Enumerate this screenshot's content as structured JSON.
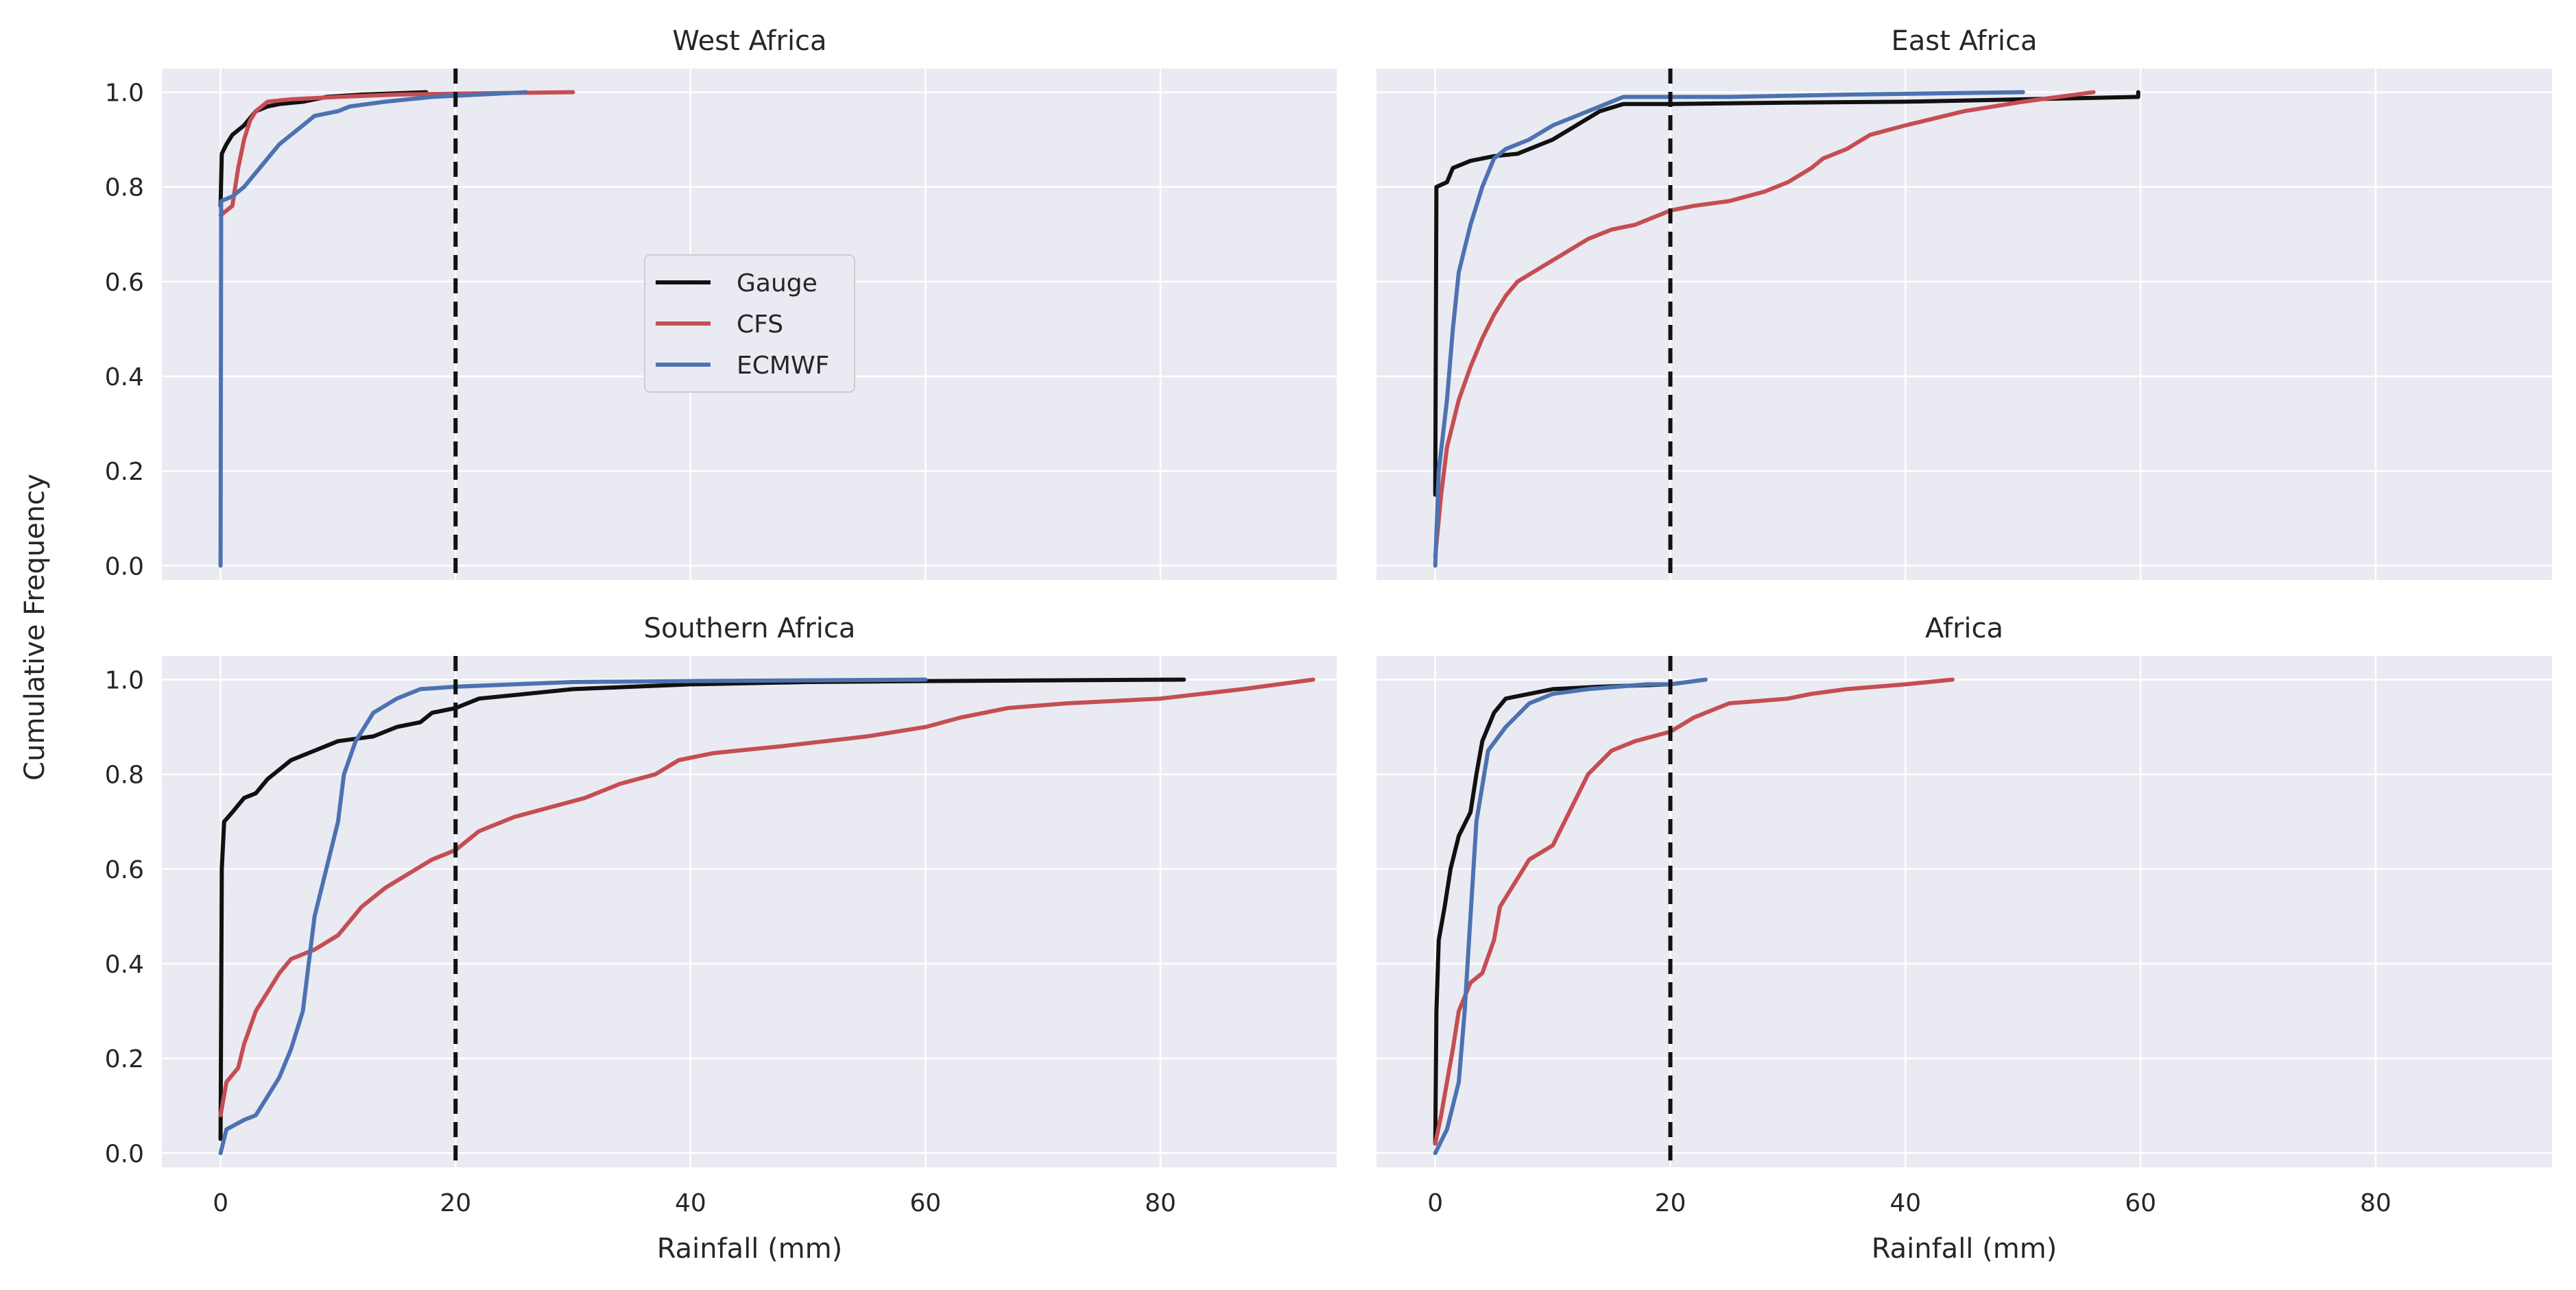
{
  "chart_data": {
    "type": "line",
    "ylabel": "Cumulative Frequency",
    "threshold_x": 20,
    "xlim": [
      -5,
      95
    ],
    "ylim": [
      -0.03,
      1.05
    ],
    "xticks": [
      0,
      20,
      40,
      60,
      80
    ],
    "yticks": [
      0.0,
      0.2,
      0.4,
      0.6,
      0.8,
      1.0
    ],
    "legend": {
      "location": "center",
      "entries": [
        {
          "name": "Gauge",
          "color": "#111111"
        },
        {
          "name": "CFS",
          "color": "#c44e52"
        },
        {
          "name": "ECMWF",
          "color": "#4c72b0"
        }
      ]
    },
    "colors": {
      "Gauge": "#111111",
      "CFS": "#c44e52",
      "ECMWF": "#4c72b0",
      "threshold": "#111111",
      "panel_bg": "#eaeaf2",
      "grid": "#ffffff"
    },
    "panels": [
      {
        "title": "West Africa",
        "xlabel": "",
        "series": [
          {
            "name": "Gauge",
            "points": [
              [
                0,
                0.76
              ],
              [
                0.1,
                0.87
              ],
              [
                0.5,
                0.89
              ],
              [
                1,
                0.91
              ],
              [
                2,
                0.93
              ],
              [
                3,
                0.96
              ],
              [
                4,
                0.97
              ],
              [
                5,
                0.975
              ],
              [
                7,
                0.98
              ],
              [
                9,
                0.99
              ],
              [
                12,
                0.995
              ],
              [
                17.5,
                1.0
              ]
            ]
          },
          {
            "name": "CFS",
            "points": [
              [
                0,
                0.74
              ],
              [
                1,
                0.76
              ],
              [
                1.5,
                0.84
              ],
              [
                2,
                0.9
              ],
              [
                2.5,
                0.94
              ],
              [
                3,
                0.96
              ],
              [
                4,
                0.98
              ],
              [
                6,
                0.985
              ],
              [
                10,
                0.99
              ],
              [
                15,
                0.995
              ],
              [
                20,
                0.997
              ],
              [
                30,
                1.0
              ]
            ]
          },
          {
            "name": "ECMWF",
            "points": [
              [
                0,
                0.0
              ],
              [
                0.05,
                0.77
              ],
              [
                1,
                0.78
              ],
              [
                2,
                0.8
              ],
              [
                3,
                0.83
              ],
              [
                4,
                0.86
              ],
              [
                5,
                0.89
              ],
              [
                6,
                0.91
              ],
              [
                7,
                0.93
              ],
              [
                8,
                0.95
              ],
              [
                10,
                0.96
              ],
              [
                11,
                0.97
              ],
              [
                14,
                0.98
              ],
              [
                18,
                0.99
              ],
              [
                22,
                0.995
              ],
              [
                26,
                1.0
              ]
            ]
          }
        ]
      },
      {
        "title": "East Africa",
        "xlabel": "",
        "series": [
          {
            "name": "Gauge",
            "points": [
              [
                0,
                0.15
              ],
              [
                0.1,
                0.8
              ],
              [
                1,
                0.81
              ],
              [
                1.5,
                0.84
              ],
              [
                3,
                0.855
              ],
              [
                5,
                0.865
              ],
              [
                7,
                0.87
              ],
              [
                9,
                0.89
              ],
              [
                10,
                0.9
              ],
              [
                12,
                0.93
              ],
              [
                14,
                0.96
              ],
              [
                16,
                0.975
              ],
              [
                20,
                0.975
              ],
              [
                30,
                0.978
              ],
              [
                40,
                0.98
              ],
              [
                50,
                0.985
              ],
              [
                59.8,
                0.99
              ],
              [
                59.8,
                1.0
              ]
            ]
          },
          {
            "name": "CFS",
            "points": [
              [
                0,
                0.02
              ],
              [
                0.5,
                0.15
              ],
              [
                1,
                0.25
              ],
              [
                2,
                0.35
              ],
              [
                3,
                0.42
              ],
              [
                4,
                0.48
              ],
              [
                5,
                0.53
              ],
              [
                6,
                0.57
              ],
              [
                7,
                0.6
              ],
              [
                9,
                0.63
              ],
              [
                11,
                0.66
              ],
              [
                13,
                0.69
              ],
              [
                15,
                0.71
              ],
              [
                17,
                0.72
              ],
              [
                19,
                0.74
              ],
              [
                20,
                0.75
              ],
              [
                22,
                0.76
              ],
              [
                25,
                0.77
              ],
              [
                28,
                0.79
              ],
              [
                30,
                0.81
              ],
              [
                32,
                0.84
              ],
              [
                33,
                0.86
              ],
              [
                35,
                0.88
              ],
              [
                37,
                0.91
              ],
              [
                40,
                0.93
              ],
              [
                45,
                0.96
              ],
              [
                50,
                0.98
              ],
              [
                56,
                1.0
              ]
            ]
          },
          {
            "name": "ECMWF",
            "points": [
              [
                0,
                0.0
              ],
              [
                0.3,
                0.2
              ],
              [
                1,
                0.35
              ],
              [
                1.5,
                0.5
              ],
              [
                2,
                0.62
              ],
              [
                3,
                0.72
              ],
              [
                4,
                0.8
              ],
              [
                5,
                0.86
              ],
              [
                6,
                0.88
              ],
              [
                8,
                0.9
              ],
              [
                10,
                0.93
              ],
              [
                12,
                0.95
              ],
              [
                14,
                0.97
              ],
              [
                16,
                0.99
              ],
              [
                25,
                0.99
              ],
              [
                35,
                0.995
              ],
              [
                50,
                1.0
              ]
            ]
          }
        ]
      },
      {
        "title": "Southern Africa",
        "xlabel": "Rainfall (mm)",
        "series": [
          {
            "name": "Gauge",
            "points": [
              [
                0,
                0.03
              ],
              [
                0.1,
                0.6
              ],
              [
                0.3,
                0.7
              ],
              [
                1,
                0.72
              ],
              [
                2,
                0.75
              ],
              [
                3,
                0.76
              ],
              [
                4,
                0.79
              ],
              [
                5,
                0.81
              ],
              [
                6,
                0.83
              ],
              [
                8,
                0.85
              ],
              [
                10,
                0.87
              ],
              [
                13,
                0.88
              ],
              [
                15,
                0.9
              ],
              [
                17,
                0.91
              ],
              [
                18,
                0.93
              ],
              [
                20,
                0.94
              ],
              [
                22,
                0.96
              ],
              [
                26,
                0.97
              ],
              [
                30,
                0.98
              ],
              [
                35,
                0.985
              ],
              [
                40,
                0.99
              ],
              [
                50,
                0.995
              ],
              [
                60,
                0.997
              ],
              [
                82,
                1.0
              ]
            ]
          },
          {
            "name": "CFS",
            "points": [
              [
                0,
                0.08
              ],
              [
                0.5,
                0.15
              ],
              [
                1.5,
                0.18
              ],
              [
                2,
                0.23
              ],
              [
                3,
                0.3
              ],
              [
                4,
                0.34
              ],
              [
                5,
                0.38
              ],
              [
                6,
                0.41
              ],
              [
                8,
                0.43
              ],
              [
                10,
                0.46
              ],
              [
                11,
                0.49
              ],
              [
                12,
                0.52
              ],
              [
                14,
                0.56
              ],
              [
                16,
                0.59
              ],
              [
                18,
                0.62
              ],
              [
                20,
                0.64
              ],
              [
                22,
                0.68
              ],
              [
                25,
                0.71
              ],
              [
                28,
                0.73
              ],
              [
                31,
                0.75
              ],
              [
                34,
                0.78
              ],
              [
                37,
                0.8
              ],
              [
                39,
                0.83
              ],
              [
                42,
                0.845
              ],
              [
                48,
                0.86
              ],
              [
                55,
                0.88
              ],
              [
                60,
                0.9
              ],
              [
                63,
                0.92
              ],
              [
                67,
                0.94
              ],
              [
                72,
                0.95
              ],
              [
                80,
                0.96
              ],
              [
                87,
                0.98
              ],
              [
                93,
                1.0
              ]
            ]
          },
          {
            "name": "ECMWF",
            "points": [
              [
                0,
                0.0
              ],
              [
                0.5,
                0.05
              ],
              [
                2,
                0.07
              ],
              [
                3,
                0.08
              ],
              [
                4,
                0.12
              ],
              [
                5,
                0.16
              ],
              [
                6,
                0.22
              ],
              [
                7,
                0.3
              ],
              [
                7.5,
                0.4
              ],
              [
                8,
                0.5
              ],
              [
                9,
                0.6
              ],
              [
                10,
                0.7
              ],
              [
                10.5,
                0.8
              ],
              [
                11.5,
                0.87
              ],
              [
                13,
                0.93
              ],
              [
                15,
                0.96
              ],
              [
                17,
                0.98
              ],
              [
                20,
                0.985
              ],
              [
                25,
                0.99
              ],
              [
                30,
                0.995
              ],
              [
                40,
                0.997
              ],
              [
                60,
                1.0
              ]
            ]
          }
        ]
      },
      {
        "title": "Africa",
        "xlabel": "Rainfall (mm)",
        "series": [
          {
            "name": "Gauge",
            "points": [
              [
                0,
                0.02
              ],
              [
                0.1,
                0.3
              ],
              [
                0.3,
                0.45
              ],
              [
                0.8,
                0.52
              ],
              [
                1.3,
                0.6
              ],
              [
                2,
                0.67
              ],
              [
                3,
                0.72
              ],
              [
                3.5,
                0.8
              ],
              [
                4,
                0.87
              ],
              [
                5,
                0.93
              ],
              [
                6,
                0.96
              ],
              [
                8,
                0.97
              ],
              [
                10,
                0.98
              ],
              [
                14,
                0.985
              ],
              [
                20,
                0.99
              ]
            ]
          },
          {
            "name": "CFS",
            "points": [
              [
                0,
                0.02
              ],
              [
                0.5,
                0.08
              ],
              [
                1,
                0.15
              ],
              [
                1.5,
                0.22
              ],
              [
                2,
                0.3
              ],
              [
                3,
                0.36
              ],
              [
                4,
                0.38
              ],
              [
                5,
                0.45
              ],
              [
                5.5,
                0.52
              ],
              [
                7,
                0.58
              ],
              [
                8,
                0.62
              ],
              [
                10,
                0.65
              ],
              [
                11,
                0.7
              ],
              [
                12,
                0.75
              ],
              [
                13,
                0.8
              ],
              [
                15,
                0.85
              ],
              [
                17,
                0.87
              ],
              [
                20,
                0.89
              ],
              [
                22,
                0.92
              ],
              [
                25,
                0.95
              ],
              [
                30,
                0.96
              ],
              [
                32,
                0.97
              ],
              [
                35,
                0.98
              ],
              [
                40,
                0.99
              ],
              [
                44,
                1.0
              ]
            ]
          },
          {
            "name": "ECMWF",
            "points": [
              [
                0,
                0.0
              ],
              [
                1,
                0.05
              ],
              [
                2,
                0.15
              ],
              [
                2.5,
                0.3
              ],
              [
                3,
                0.5
              ],
              [
                3.5,
                0.7
              ],
              [
                4.5,
                0.85
              ],
              [
                6,
                0.9
              ],
              [
                8,
                0.95
              ],
              [
                10,
                0.97
              ],
              [
                13,
                0.98
              ],
              [
                18,
                0.99
              ],
              [
                20,
                0.99
              ],
              [
                23,
                1.0
              ]
            ]
          }
        ]
      }
    ]
  }
}
